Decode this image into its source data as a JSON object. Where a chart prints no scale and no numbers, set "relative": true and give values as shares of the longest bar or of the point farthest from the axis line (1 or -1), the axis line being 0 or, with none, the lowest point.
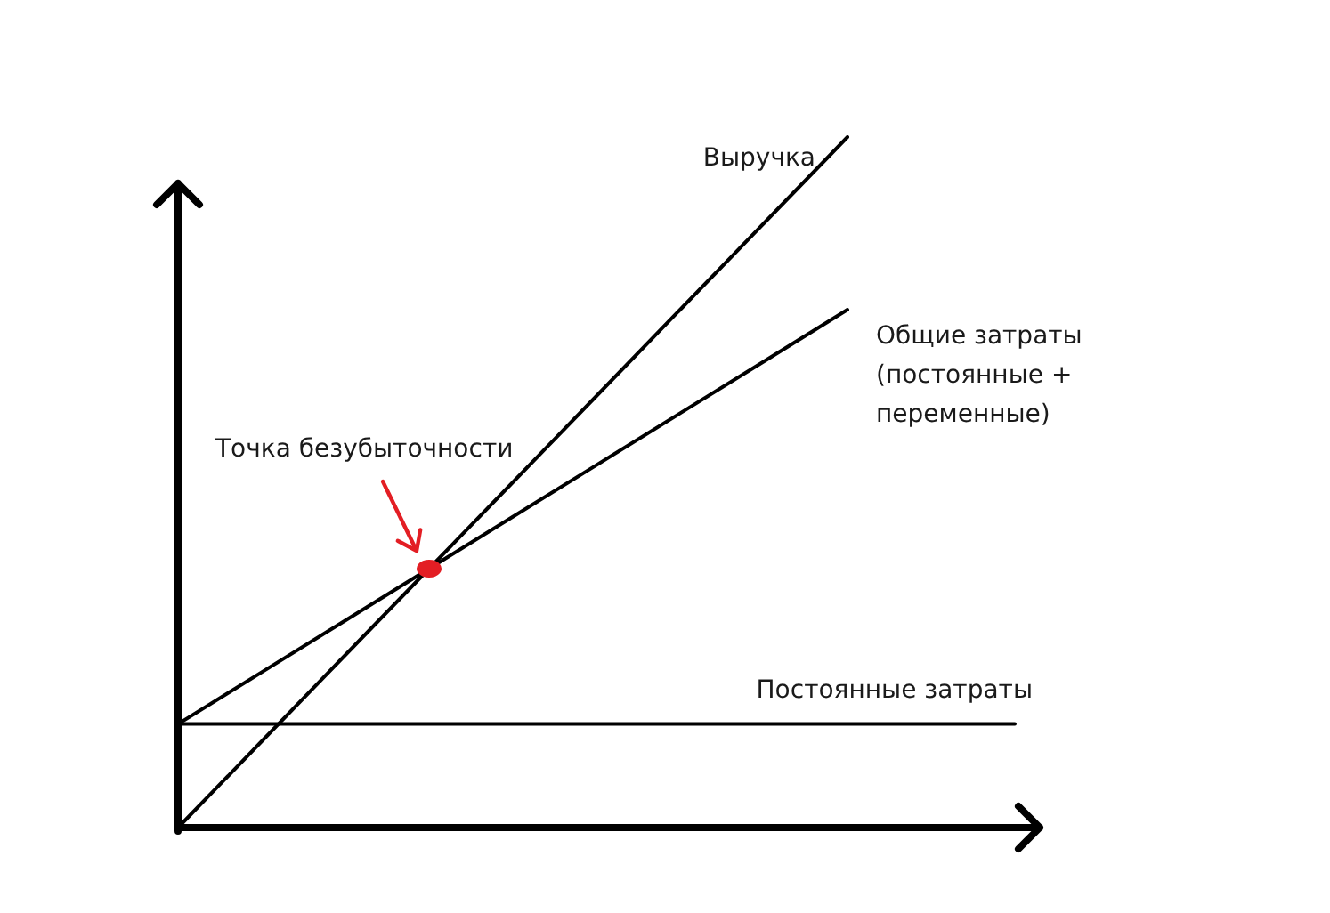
{
  "chart_data": {
    "type": "line",
    "relative": true,
    "categories": [
      null,
      null,
      null,
      null,
      null,
      null,
      null,
      null,
      null,
      null,
      null
    ],
    "series": [
      {
        "name": "Выручка",
        "color": "#000000",
        "values": [
          0,
          0.125,
          0.25,
          0.375,
          0.5,
          0.625,
          0.75,
          0.875,
          1,
          null,
          null
        ]
      },
      {
        "name": "Общие затраты (постоянные + переменные)",
        "color": "#000000",
        "values": [
          0.15,
          0.225,
          0.3,
          0.375,
          0.45,
          0.525,
          0.6,
          0.675,
          0.75,
          null,
          null
        ]
      },
      {
        "name": "Постоянные затраты",
        "color": "#000000",
        "values": [
          0.15,
          0.15,
          0.15,
          0.15,
          0.15,
          0.15,
          0.15,
          0.15,
          0.15,
          0.15,
          0.15
        ]
      },
      {
        "marker": "circle",
        "color": "#e31e24",
        "values": [
          null,
          null,
          null,
          0.375,
          null,
          null,
          null,
          null,
          null,
          null,
          null
        ]
      }
    ],
    "annotations": [
      "Точка безубыточности"
    ],
    "legend": false,
    "grid": false
  }
}
